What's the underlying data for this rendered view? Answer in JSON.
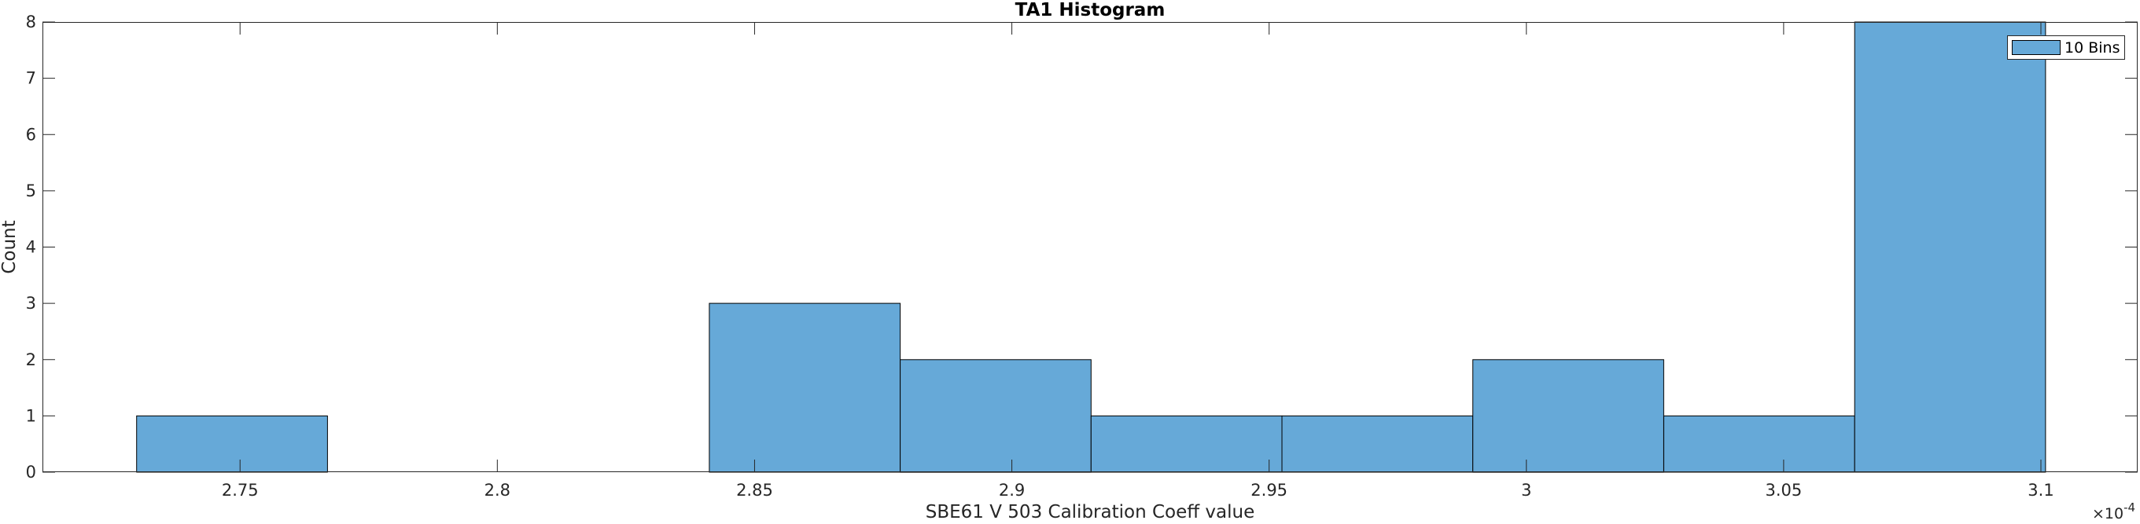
{
  "chart_data": {
    "type": "bar",
    "title": "TA1 Histogram",
    "xlabel": "SBE61 V 503 Calibration Coeff value",
    "ylabel": "Count",
    "x_multiplier": "10",
    "x_multiplier_exponent": "-4",
    "x_multiplier_prefix": "×",
    "xlim": [
      2.7116,
      3.1188
    ],
    "ylim": [
      0,
      8
    ],
    "xticks": [
      2.75,
      2.8,
      2.85,
      2.9,
      2.95,
      3.0,
      3.05,
      3.1
    ],
    "xtick_labels": [
      "2.75",
      "2.8",
      "2.85",
      "2.9",
      "2.95",
      "3",
      "3.05",
      "3.1"
    ],
    "yticks": [
      0,
      1,
      2,
      3,
      4,
      5,
      6,
      7,
      8
    ],
    "ytick_labels": [
      "0",
      "1",
      "2",
      "3",
      "4",
      "5",
      "6",
      "7",
      "8"
    ],
    "bin_edges": [
      2.7299,
      2.767,
      2.8041,
      2.8412,
      2.8783,
      2.9154,
      2.9525,
      2.9896,
      3.0267,
      3.0638,
      3.1009
    ],
    "counts": [
      1,
      0,
      0,
      3,
      2,
      1,
      1,
      2,
      1,
      8
    ],
    "legend": {
      "label": "10 Bins",
      "location": "top-right"
    },
    "bar_color": "#66a9d8",
    "edge_color": "#000000",
    "grid": false
  }
}
